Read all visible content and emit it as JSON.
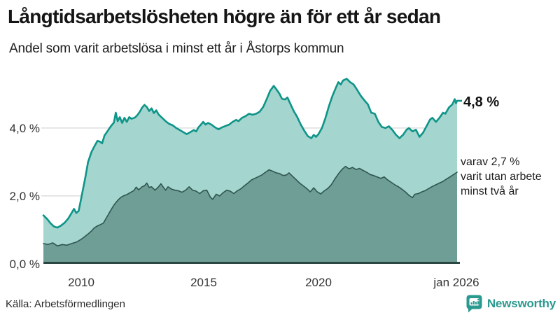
{
  "header": {
    "title": "Långtidsarbetslösheten högre än för ett år sedan",
    "subtitle": "Andel som varit arbetslösa i minst ett år i Åstorps kommun"
  },
  "annotations": {
    "latest_value": "4,8 %",
    "note_lines": [
      "varav 2,7 %",
      "varit utan arbete",
      "minst två år"
    ]
  },
  "footer": {
    "source": "Källa: Arbetsförmedlingen",
    "brand": "Newsworthy"
  },
  "colors": {
    "accent_teal": "#0e9488",
    "light_fill": "#a4d5ce",
    "dark_line": "#2e564f",
    "dark_fill": "#6f9e97",
    "gridline": "#d7d7d7",
    "baseline": "#2b4742",
    "brand_teal": "#2a998f"
  },
  "chart_data": {
    "type": "area",
    "title": "Långtidsarbetslösheten högre än för ett år sedan",
    "subtitle": "Andel som varit arbetslösa i minst ett år i Åstorps kommun",
    "source": "Arbetsförmedlingen",
    "xlim": [
      2008.4,
      2026.0
    ],
    "ylim": [
      0,
      5.81
    ],
    "grid": "horizontal-only",
    "gridlines_pct": [
      2,
      4
    ],
    "x_ticks": [
      "2010",
      "2015",
      "2020",
      "jan 2026"
    ],
    "x_tick_years": [
      2010,
      2015,
      2020,
      2026
    ],
    "y_ticks": [
      "0,0 %",
      "2,0 %",
      "4,0 %"
    ],
    "y_tick_values": [
      0,
      2,
      4
    ],
    "latest": {
      "one_year_pct": 4.8,
      "two_year_pct": 2.7,
      "latest_month": "jan 2026"
    },
    "series": [
      {
        "name": "Arbetslösa minst ett år",
        "stroke": "#0e9488",
        "fill": "#a4d5ce",
        "width": 2.6,
        "points": [
          [
            2008.4,
            1.43
          ],
          [
            2008.55,
            1.33
          ],
          [
            2008.7,
            1.2
          ],
          [
            2008.85,
            1.1
          ],
          [
            2009.0,
            1.07
          ],
          [
            2009.15,
            1.13
          ],
          [
            2009.3,
            1.21
          ],
          [
            2009.45,
            1.33
          ],
          [
            2009.6,
            1.5
          ],
          [
            2009.7,
            1.62
          ],
          [
            2009.8,
            1.5
          ],
          [
            2009.9,
            1.56
          ],
          [
            2010.0,
            1.9
          ],
          [
            2010.1,
            2.25
          ],
          [
            2010.2,
            2.6
          ],
          [
            2010.3,
            3.0
          ],
          [
            2010.45,
            3.3
          ],
          [
            2010.6,
            3.5
          ],
          [
            2010.7,
            3.62
          ],
          [
            2010.8,
            3.6
          ],
          [
            2010.9,
            3.55
          ],
          [
            2011.0,
            3.78
          ],
          [
            2011.1,
            3.88
          ],
          [
            2011.2,
            3.98
          ],
          [
            2011.3,
            4.08
          ],
          [
            2011.4,
            4.16
          ],
          [
            2011.48,
            4.45
          ],
          [
            2011.56,
            4.2
          ],
          [
            2011.65,
            4.32
          ],
          [
            2011.75,
            4.15
          ],
          [
            2011.85,
            4.3
          ],
          [
            2011.95,
            4.18
          ],
          [
            2012.05,
            4.32
          ],
          [
            2012.15,
            4.27
          ],
          [
            2012.3,
            4.31
          ],
          [
            2012.4,
            4.38
          ],
          [
            2012.5,
            4.48
          ],
          [
            2012.6,
            4.6
          ],
          [
            2012.7,
            4.68
          ],
          [
            2012.8,
            4.62
          ],
          [
            2012.9,
            4.5
          ],
          [
            2013.0,
            4.58
          ],
          [
            2013.1,
            4.44
          ],
          [
            2013.2,
            4.52
          ],
          [
            2013.3,
            4.4
          ],
          [
            2013.45,
            4.3
          ],
          [
            2013.6,
            4.2
          ],
          [
            2013.75,
            4.12
          ],
          [
            2013.9,
            4.08
          ],
          [
            2014.05,
            4.0
          ],
          [
            2014.2,
            3.94
          ],
          [
            2014.35,
            3.88
          ],
          [
            2014.5,
            3.82
          ],
          [
            2014.65,
            3.88
          ],
          [
            2014.8,
            3.94
          ],
          [
            2014.9,
            3.9
          ],
          [
            2015.0,
            4.02
          ],
          [
            2015.1,
            4.1
          ],
          [
            2015.2,
            4.18
          ],
          [
            2015.3,
            4.1
          ],
          [
            2015.4,
            4.15
          ],
          [
            2015.55,
            4.1
          ],
          [
            2015.7,
            4.02
          ],
          [
            2015.85,
            3.96
          ],
          [
            2016.0,
            4.02
          ],
          [
            2016.15,
            4.06
          ],
          [
            2016.3,
            4.1
          ],
          [
            2016.45,
            4.18
          ],
          [
            2016.6,
            4.24
          ],
          [
            2016.7,
            4.2
          ],
          [
            2016.85,
            4.3
          ],
          [
            2017.0,
            4.35
          ],
          [
            2017.15,
            4.42
          ],
          [
            2017.3,
            4.39
          ],
          [
            2017.45,
            4.42
          ],
          [
            2017.6,
            4.48
          ],
          [
            2017.75,
            4.62
          ],
          [
            2017.9,
            4.85
          ],
          [
            2018.05,
            5.1
          ],
          [
            2018.2,
            5.24
          ],
          [
            2018.3,
            5.15
          ],
          [
            2018.45,
            5.0
          ],
          [
            2018.55,
            4.86
          ],
          [
            2018.68,
            4.84
          ],
          [
            2018.78,
            4.9
          ],
          [
            2018.9,
            4.72
          ],
          [
            2019.05,
            4.5
          ],
          [
            2019.2,
            4.32
          ],
          [
            2019.35,
            4.1
          ],
          [
            2019.5,
            3.92
          ],
          [
            2019.65,
            3.76
          ],
          [
            2019.8,
            3.7
          ],
          [
            2019.9,
            3.8
          ],
          [
            2020.0,
            3.74
          ],
          [
            2020.1,
            3.82
          ],
          [
            2020.25,
            4.0
          ],
          [
            2020.4,
            4.3
          ],
          [
            2020.55,
            4.65
          ],
          [
            2020.7,
            4.95
          ],
          [
            2020.85,
            5.2
          ],
          [
            2020.95,
            5.35
          ],
          [
            2021.05,
            5.28
          ],
          [
            2021.15,
            5.4
          ],
          [
            2021.3,
            5.45
          ],
          [
            2021.45,
            5.35
          ],
          [
            2021.6,
            5.28
          ],
          [
            2021.75,
            5.12
          ],
          [
            2021.9,
            4.95
          ],
          [
            2022.05,
            4.82
          ],
          [
            2022.2,
            4.7
          ],
          [
            2022.35,
            4.45
          ],
          [
            2022.5,
            4.42
          ],
          [
            2022.65,
            4.18
          ],
          [
            2022.8,
            4.03
          ],
          [
            2022.95,
            4.0
          ],
          [
            2023.1,
            4.05
          ],
          [
            2023.25,
            3.94
          ],
          [
            2023.4,
            3.8
          ],
          [
            2023.55,
            3.7
          ],
          [
            2023.7,
            3.8
          ],
          [
            2023.85,
            3.95
          ],
          [
            2023.95,
            4.0
          ],
          [
            2024.1,
            3.9
          ],
          [
            2024.25,
            3.95
          ],
          [
            2024.4,
            3.74
          ],
          [
            2024.55,
            3.86
          ],
          [
            2024.7,
            4.05
          ],
          [
            2024.85,
            4.25
          ],
          [
            2024.95,
            4.3
          ],
          [
            2025.1,
            4.18
          ],
          [
            2025.25,
            4.3
          ],
          [
            2025.4,
            4.45
          ],
          [
            2025.5,
            4.42
          ],
          [
            2025.65,
            4.6
          ],
          [
            2025.8,
            4.7
          ],
          [
            2025.9,
            4.85
          ],
          [
            2025.95,
            4.73
          ],
          [
            2026.0,
            4.8
          ]
        ]
      },
      {
        "name": "Varav utan arbete minst två år",
        "stroke": "#2e564f",
        "fill": "#6f9e97",
        "width": 1.6,
        "points": [
          [
            2008.4,
            0.6
          ],
          [
            2008.6,
            0.57
          ],
          [
            2008.8,
            0.62
          ],
          [
            2009.0,
            0.53
          ],
          [
            2009.2,
            0.57
          ],
          [
            2009.4,
            0.55
          ],
          [
            2009.6,
            0.6
          ],
          [
            2009.8,
            0.64
          ],
          [
            2010.0,
            0.72
          ],
          [
            2010.15,
            0.8
          ],
          [
            2010.3,
            0.88
          ],
          [
            2010.45,
            0.97
          ],
          [
            2010.55,
            1.05
          ],
          [
            2010.65,
            1.1
          ],
          [
            2010.8,
            1.15
          ],
          [
            2010.95,
            1.2
          ],
          [
            2011.1,
            1.38
          ],
          [
            2011.25,
            1.56
          ],
          [
            2011.4,
            1.73
          ],
          [
            2011.5,
            1.82
          ],
          [
            2011.6,
            1.9
          ],
          [
            2011.7,
            1.96
          ],
          [
            2011.8,
            2.0
          ],
          [
            2011.95,
            2.04
          ],
          [
            2012.1,
            2.1
          ],
          [
            2012.25,
            2.16
          ],
          [
            2012.35,
            2.26
          ],
          [
            2012.45,
            2.18
          ],
          [
            2012.6,
            2.27
          ],
          [
            2012.7,
            2.3
          ],
          [
            2012.8,
            2.38
          ],
          [
            2012.9,
            2.25
          ],
          [
            2013.0,
            2.27
          ],
          [
            2013.15,
            2.17
          ],
          [
            2013.3,
            2.27
          ],
          [
            2013.4,
            2.36
          ],
          [
            2013.5,
            2.26
          ],
          [
            2013.6,
            2.17
          ],
          [
            2013.7,
            2.27
          ],
          [
            2013.85,
            2.2
          ],
          [
            2014.0,
            2.17
          ],
          [
            2014.15,
            2.15
          ],
          [
            2014.3,
            2.11
          ],
          [
            2014.45,
            2.17
          ],
          [
            2014.6,
            2.27
          ],
          [
            2014.75,
            2.17
          ],
          [
            2014.9,
            2.14
          ],
          [
            2015.05,
            2.07
          ],
          [
            2015.2,
            2.15
          ],
          [
            2015.35,
            2.17
          ],
          [
            2015.5,
            1.97
          ],
          [
            2015.6,
            1.9
          ],
          [
            2015.75,
            2.05
          ],
          [
            2015.9,
            2.0
          ],
          [
            2016.05,
            2.1
          ],
          [
            2016.2,
            2.17
          ],
          [
            2016.35,
            2.14
          ],
          [
            2016.5,
            2.07
          ],
          [
            2016.65,
            2.15
          ],
          [
            2016.8,
            2.21
          ],
          [
            2016.95,
            2.3
          ],
          [
            2017.1,
            2.38
          ],
          [
            2017.25,
            2.47
          ],
          [
            2017.4,
            2.52
          ],
          [
            2017.55,
            2.57
          ],
          [
            2017.7,
            2.62
          ],
          [
            2017.85,
            2.7
          ],
          [
            2018.0,
            2.77
          ],
          [
            2018.15,
            2.73
          ],
          [
            2018.3,
            2.68
          ],
          [
            2018.45,
            2.66
          ],
          [
            2018.6,
            2.6
          ],
          [
            2018.75,
            2.62
          ],
          [
            2018.85,
            2.68
          ],
          [
            2019.0,
            2.58
          ],
          [
            2019.15,
            2.48
          ],
          [
            2019.3,
            2.38
          ],
          [
            2019.45,
            2.3
          ],
          [
            2019.6,
            2.22
          ],
          [
            2019.75,
            2.12
          ],
          [
            2019.9,
            2.24
          ],
          [
            2020.05,
            2.12
          ],
          [
            2020.2,
            2.06
          ],
          [
            2020.35,
            2.15
          ],
          [
            2020.5,
            2.22
          ],
          [
            2020.65,
            2.33
          ],
          [
            2020.8,
            2.5
          ],
          [
            2020.95,
            2.65
          ],
          [
            2021.1,
            2.78
          ],
          [
            2021.25,
            2.87
          ],
          [
            2021.4,
            2.8
          ],
          [
            2021.55,
            2.84
          ],
          [
            2021.7,
            2.78
          ],
          [
            2021.85,
            2.81
          ],
          [
            2022.0,
            2.75
          ],
          [
            2022.15,
            2.7
          ],
          [
            2022.3,
            2.63
          ],
          [
            2022.45,
            2.6
          ],
          [
            2022.6,
            2.56
          ],
          [
            2022.75,
            2.52
          ],
          [
            2022.9,
            2.56
          ],
          [
            2023.05,
            2.47
          ],
          [
            2023.2,
            2.4
          ],
          [
            2023.35,
            2.33
          ],
          [
            2023.5,
            2.27
          ],
          [
            2023.65,
            2.2
          ],
          [
            2023.8,
            2.12
          ],
          [
            2023.95,
            2.02
          ],
          [
            2024.1,
            1.95
          ],
          [
            2024.2,
            2.05
          ],
          [
            2024.35,
            2.07
          ],
          [
            2024.5,
            2.12
          ],
          [
            2024.65,
            2.16
          ],
          [
            2024.8,
            2.22
          ],
          [
            2024.95,
            2.28
          ],
          [
            2025.1,
            2.33
          ],
          [
            2025.25,
            2.38
          ],
          [
            2025.4,
            2.43
          ],
          [
            2025.55,
            2.5
          ],
          [
            2025.7,
            2.56
          ],
          [
            2025.85,
            2.63
          ],
          [
            2026.0,
            2.7
          ]
        ]
      }
    ]
  }
}
